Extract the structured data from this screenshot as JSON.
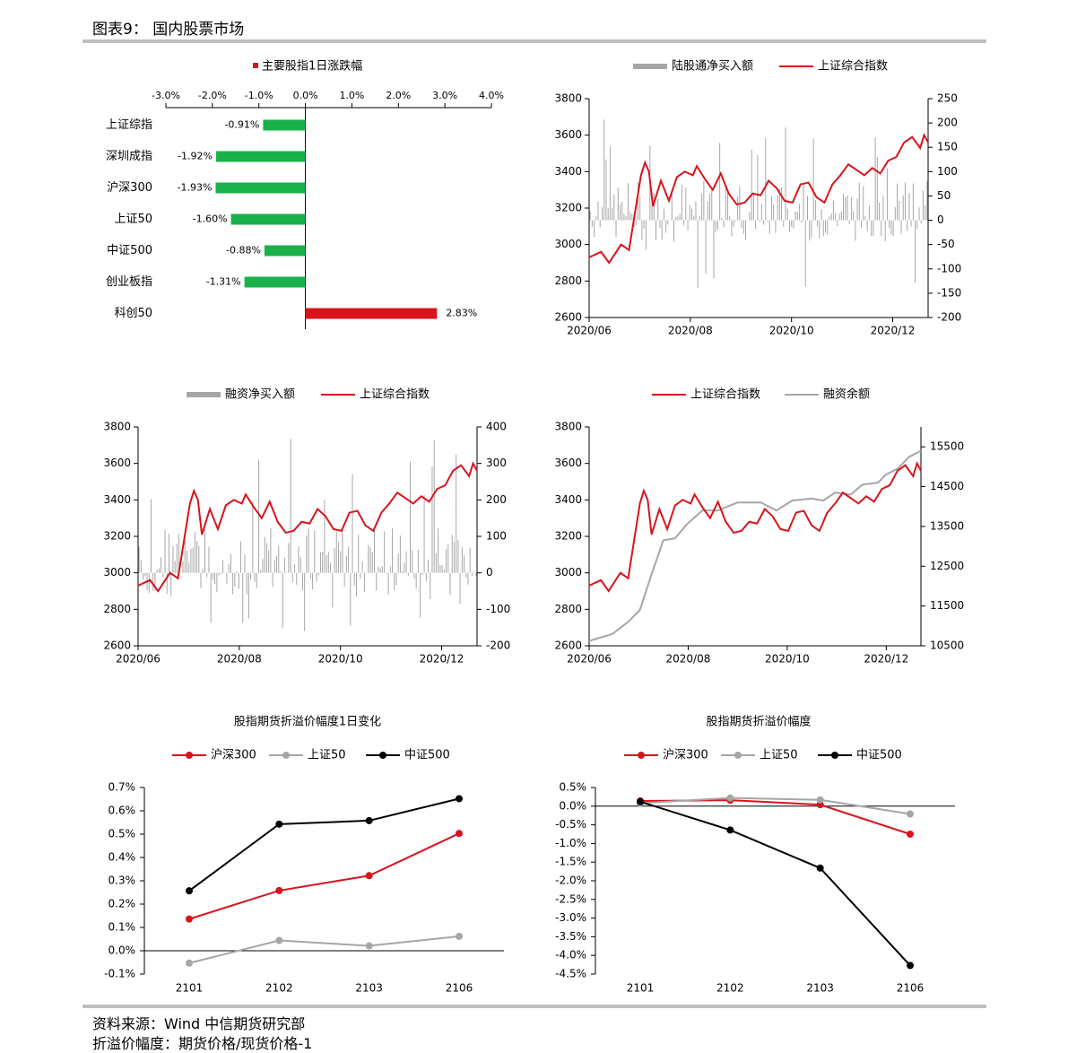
{
  "header": {
    "title": "图表9： 国内股票市场"
  },
  "footer": {
    "source": "资料来源：Wind 中信期货研究部",
    "note": "折溢价幅度：期货价格/现货价格-1"
  },
  "colors": {
    "red": "#d7141c",
    "green": "#19b14a",
    "gray": "#a6a6a6",
    "black": "#000000",
    "rule": "#bfbfbf"
  },
  "chart_data": [
    {
      "id": "index-change",
      "type": "bar",
      "orientation": "horizontal",
      "legend": "主要股指1日涨跌幅",
      "categories": [
        "上证综指",
        "深圳成指",
        "沪深300",
        "上证50",
        "中证500",
        "创业板指",
        "科创50"
      ],
      "values": [
        -0.91,
        -1.92,
        -1.93,
        -1.6,
        -0.88,
        -1.31,
        2.83
      ],
      "value_labels": [
        "-0.91%",
        "-1.92%",
        "-1.93%",
        "-1.60%",
        "-0.88%",
        "-1.31%",
        "2.83%"
      ],
      "xlim": [
        -3.0,
        4.0
      ],
      "x_ticks": [
        -3,
        -2,
        -1,
        0,
        1,
        2,
        3,
        4
      ],
      "x_tick_labels": [
        "-3.0%",
        "-2.0%",
        "-1.0%",
        "0.0%",
        "1.0%",
        "2.0%",
        "3.0%",
        "4.0%"
      ]
    },
    {
      "id": "northbound",
      "type": "bar+line",
      "legend": [
        "陆股通净买入额",
        "上证综合指数"
      ],
      "x_tick_labels": [
        "2020/06",
        "2020/08",
        "2020/10",
        "2020/12"
      ],
      "left_axis": {
        "min": 2600,
        "max": 3800,
        "ticks": [
          "2600",
          "2800",
          "3000",
          "3200",
          "3400",
          "3600",
          "3800"
        ]
      },
      "right_axis": {
        "min": -200,
        "max": 250,
        "ticks": [
          "-200",
          "-150",
          "-100",
          "-50",
          "0",
          "50",
          "100",
          "150",
          "200",
          "250"
        ]
      },
      "series": [
        {
          "name": "陆股通净买入额",
          "type": "bar",
          "seed": 7,
          "range": [
            -150,
            210
          ]
        },
        {
          "name": "上证综合指数",
          "type": "line",
          "ref": "shci"
        }
      ]
    },
    {
      "id": "margin-buy",
      "type": "bar+line",
      "legend": [
        "融资净买入额",
        "上证综合指数"
      ],
      "x_tick_labels": [
        "2020/06",
        "2020/08",
        "2020/10",
        "2020/12"
      ],
      "left_axis": {
        "min": 2600,
        "max": 3800,
        "ticks": [
          "2600",
          "2800",
          "3000",
          "3200",
          "3400",
          "3600",
          "3800"
        ]
      },
      "right_axis": {
        "min": -200,
        "max": 400,
        "ticks": [
          "-200",
          "-100",
          "0",
          "100",
          "200",
          "300",
          "400"
        ]
      },
      "series": [
        {
          "name": "融资净买入额",
          "type": "bar",
          "seed": 13,
          "range": [
            -170,
            370
          ]
        },
        {
          "name": "上证综合指数",
          "type": "line",
          "ref": "shci"
        }
      ]
    },
    {
      "id": "margin-balance",
      "type": "line",
      "legend": [
        "上证综合指数",
        "融资余额"
      ],
      "x_tick_labels": [
        "2020/06",
        "2020/08",
        "2020/10",
        "2020/12"
      ],
      "left_axis": {
        "min": 2600,
        "max": 3800,
        "ticks": [
          "2600",
          "2800",
          "3000",
          "3200",
          "3400",
          "3600",
          "3800"
        ]
      },
      "right_axis": {
        "min": 10500,
        "max": 16000,
        "ticks": [
          "10500",
          "11500",
          "12500",
          "13500",
          "14500",
          "15500"
        ]
      },
      "series": [
        {
          "name": "上证综合指数",
          "type": "line",
          "ref": "shci"
        },
        {
          "name": "融资余额",
          "type": "line",
          "axis": "right",
          "anchors": [
            [
              0,
              10620
            ],
            [
              6,
              10800
            ],
            [
              10,
              11100
            ],
            [
              13,
              11400
            ],
            [
              16,
              12300
            ],
            [
              19,
              13150
            ],
            [
              22,
              13200
            ],
            [
              25,
              13550
            ],
            [
              29,
              13900
            ],
            [
              33,
              13900
            ],
            [
              38,
              14100
            ],
            [
              44,
              14100
            ],
            [
              48,
              13900
            ],
            [
              52,
              14150
            ],
            [
              57,
              14200
            ],
            [
              60,
              14150
            ],
            [
              63,
              14350
            ],
            [
              67,
              14300
            ],
            [
              70,
              14550
            ],
            [
              74,
              14600
            ],
            [
              76,
              14800
            ],
            [
              79,
              14950
            ],
            [
              82,
              15250
            ],
            [
              85,
              15400
            ]
          ]
        }
      ],
      "shci_anchors": [
        [
          0,
          2930
        ],
        [
          3,
          2960
        ],
        [
          5,
          2900
        ],
        [
          8,
          3000
        ],
        [
          10,
          2970
        ],
        [
          13,
          3380
        ],
        [
          14,
          3450
        ],
        [
          15,
          3400
        ],
        [
          16,
          3210
        ],
        [
          18,
          3350
        ],
        [
          20,
          3240
        ],
        [
          22,
          3370
        ],
        [
          24,
          3400
        ],
        [
          26,
          3380
        ],
        [
          27,
          3430
        ],
        [
          29,
          3360
        ],
        [
          31,
          3300
        ],
        [
          33,
          3390
        ],
        [
          35,
          3280
        ],
        [
          37,
          3220
        ],
        [
          39,
          3230
        ],
        [
          41,
          3280
        ],
        [
          43,
          3270
        ],
        [
          45,
          3350
        ],
        [
          47,
          3310
        ],
        [
          49,
          3240
        ],
        [
          51,
          3230
        ],
        [
          53,
          3330
        ],
        [
          55,
          3340
        ],
        [
          57,
          3260
        ],
        [
          59,
          3230
        ],
        [
          61,
          3330
        ],
        [
          63,
          3380
        ],
        [
          65,
          3440
        ],
        [
          67,
          3410
        ],
        [
          69,
          3380
        ],
        [
          71,
          3420
        ],
        [
          73,
          3390
        ],
        [
          75,
          3460
        ],
        [
          77,
          3480
        ],
        [
          79,
          3560
        ],
        [
          81,
          3590
        ],
        [
          83,
          3530
        ],
        [
          84,
          3600
        ],
        [
          85,
          3560
        ]
      ]
    },
    {
      "id": "basis-change",
      "type": "line",
      "title": "股指期货折溢价幅度1日变化",
      "legend": [
        "沪深300",
        "上证50",
        "中证500"
      ],
      "categories": [
        "2101",
        "2102",
        "2103",
        "2106"
      ],
      "ylim": [
        -0.1,
        0.7
      ],
      "y_tick_labels": [
        "-0.1%",
        "0.0%",
        "0.1%",
        "0.2%",
        "0.3%",
        "0.4%",
        "0.5%",
        "0.6%",
        "0.7%"
      ],
      "series": [
        {
          "name": "沪深300",
          "values": [
            0.136,
            0.258,
            0.322,
            0.503
          ]
        },
        {
          "name": "上证50",
          "values": [
            -0.053,
            0.044,
            0.021,
            0.062
          ]
        },
        {
          "name": "中证500",
          "values": [
            0.257,
            0.543,
            0.558,
            0.652
          ]
        }
      ]
    },
    {
      "id": "basis-level",
      "type": "line",
      "title": "股指期货折溢价幅度",
      "legend": [
        "沪深300",
        "上证50",
        "中证500"
      ],
      "categories": [
        "2101",
        "2102",
        "2103",
        "2106"
      ],
      "ylim": [
        -4.5,
        0.5
      ],
      "y_tick_labels": [
        "-4.5%",
        "-4.0%",
        "-3.5%",
        "-3.0%",
        "-2.5%",
        "-2.0%",
        "-1.5%",
        "-1.0%",
        "-0.5%",
        "0.0%",
        "0.5%"
      ],
      "series": [
        {
          "name": "沪深300",
          "values": [
            0.14,
            0.16,
            0.04,
            -0.75
          ]
        },
        {
          "name": "上证50",
          "values": [
            0.08,
            0.22,
            0.17,
            -0.21
          ]
        },
        {
          "name": "中证500",
          "values": [
            0.12,
            -0.64,
            -1.66,
            -4.27
          ]
        }
      ]
    }
  ]
}
